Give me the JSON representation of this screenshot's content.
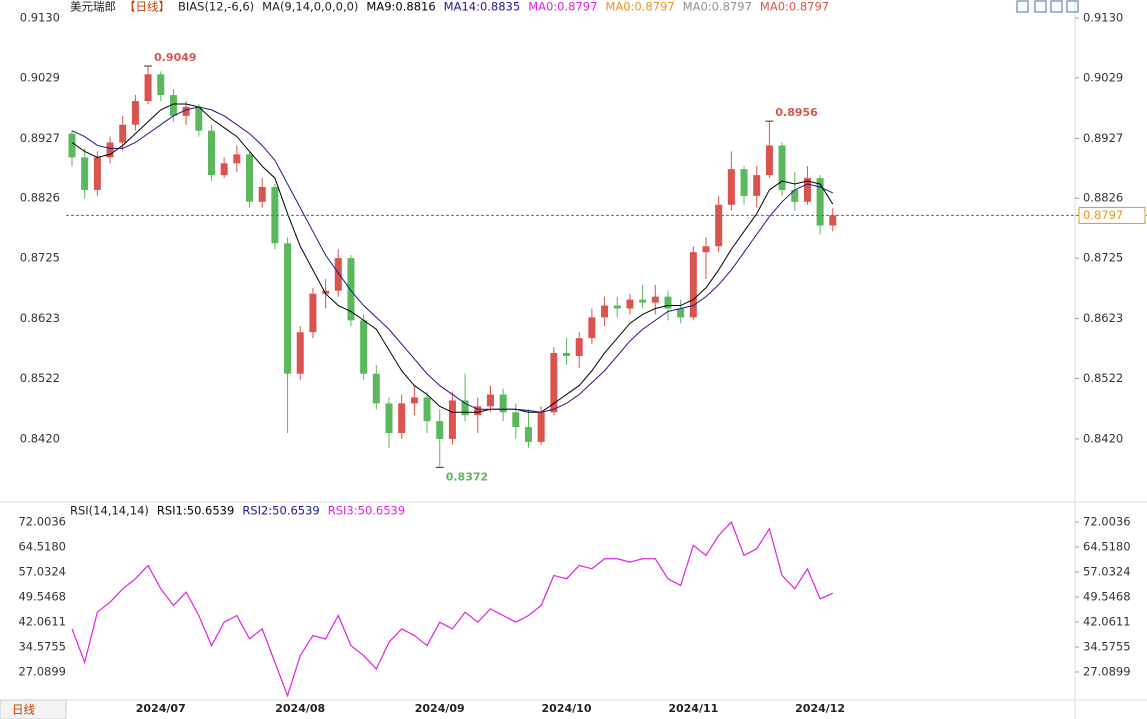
{
  "chart_data": [
    {
      "type": "candlestick",
      "title": "美元瑞郎",
      "period": "【日线】",
      "indicators": [
        "BIAS(12,-6,6)",
        "MA(9,14,0,0,0,0)"
      ],
      "up_color": "#d9534f",
      "down_color": "#5cb85c",
      "categories": [
        null,
        null,
        null,
        null,
        null,
        null,
        null,
        "2024/07",
        null,
        null,
        null,
        null,
        null,
        null,
        null,
        null,
        null,
        null,
        "2024/08",
        null,
        null,
        null,
        null,
        null,
        null,
        null,
        null,
        null,
        null,
        "2024/09",
        null,
        null,
        null,
        null,
        null,
        null,
        null,
        null,
        null,
        "2024/10",
        null,
        null,
        null,
        null,
        null,
        null,
        null,
        null,
        null,
        "2024/11",
        null,
        null,
        null,
        null,
        null,
        null,
        null,
        null,
        null,
        "2024/12",
        null
      ],
      "open": [
        0.8935,
        0.8895,
        0.884,
        0.8895,
        0.892,
        0.895,
        0.899,
        0.9035,
        0.9,
        0.8965,
        0.898,
        0.894,
        0.8865,
        0.8885,
        0.89,
        0.882,
        0.8845,
        0.875,
        0.853,
        0.86,
        0.8665,
        0.867,
        0.8725,
        0.862,
        0.853,
        0.848,
        0.843,
        0.848,
        0.849,
        0.845,
        0.842,
        0.8485,
        0.846,
        0.8475,
        0.8495,
        0.8465,
        0.844,
        0.8415,
        0.8465,
        0.8565,
        0.856,
        0.859,
        0.8625,
        0.8645,
        0.864,
        0.8655,
        0.865,
        0.866,
        0.864,
        0.8625,
        0.8735,
        0.8745,
        0.8815,
        0.8875,
        0.883,
        0.8865,
        0.8915,
        0.884,
        0.882,
        0.886,
        0.878
      ],
      "high": [
        0.894,
        0.891,
        0.8905,
        0.893,
        0.8965,
        0.9,
        0.9049,
        0.904,
        0.901,
        0.899,
        0.8985,
        0.895,
        0.8895,
        0.8915,
        0.8905,
        0.886,
        0.885,
        0.876,
        0.861,
        0.8675,
        0.869,
        0.874,
        0.873,
        0.863,
        0.8545,
        0.849,
        0.8495,
        0.851,
        0.85,
        0.847,
        0.85,
        0.853,
        0.849,
        0.851,
        0.8505,
        0.848,
        0.847,
        0.8475,
        0.8575,
        0.859,
        0.86,
        0.864,
        0.866,
        0.866,
        0.8665,
        0.868,
        0.868,
        0.867,
        0.8655,
        0.8745,
        0.876,
        0.883,
        0.8905,
        0.888,
        0.888,
        0.8956,
        0.892,
        0.887,
        0.888,
        0.8865,
        0.881
      ],
      "low": [
        0.888,
        0.8825,
        0.883,
        0.8885,
        0.8905,
        0.894,
        0.8985,
        0.899,
        0.8955,
        0.895,
        0.893,
        0.8855,
        0.886,
        0.887,
        0.881,
        0.881,
        0.874,
        0.843,
        0.852,
        0.859,
        0.864,
        0.866,
        0.861,
        0.852,
        0.847,
        0.8405,
        0.842,
        0.846,
        0.843,
        0.8372,
        0.841,
        0.845,
        0.843,
        0.8465,
        0.845,
        0.842,
        0.8405,
        0.841,
        0.846,
        0.8545,
        0.854,
        0.858,
        0.861,
        0.8625,
        0.863,
        0.864,
        0.863,
        0.862,
        0.8615,
        0.862,
        0.869,
        0.8735,
        0.8805,
        0.8815,
        0.881,
        0.886,
        0.883,
        0.8805,
        0.8815,
        0.8765,
        0.877
      ],
      "close": [
        0.8895,
        0.884,
        0.8895,
        0.892,
        0.895,
        0.899,
        0.9035,
        0.9,
        0.8965,
        0.898,
        0.894,
        0.8865,
        0.8885,
        0.89,
        0.882,
        0.8845,
        0.875,
        0.853,
        0.86,
        0.8665,
        0.867,
        0.8725,
        0.862,
        0.853,
        0.848,
        0.843,
        0.848,
        0.849,
        0.845,
        0.842,
        0.8485,
        0.846,
        0.8475,
        0.8495,
        0.8465,
        0.844,
        0.8415,
        0.8465,
        0.8565,
        0.856,
        0.859,
        0.8625,
        0.8645,
        0.864,
        0.8655,
        0.865,
        0.866,
        0.864,
        0.8625,
        0.8735,
        0.8745,
        0.8815,
        0.8875,
        0.883,
        0.8865,
        0.8915,
        0.884,
        0.882,
        0.886,
        0.878,
        0.8797
      ],
      "series": [
        {
          "name": "MA9:0.8816",
          "color": "#000000",
          "values": [
            0.892,
            0.8905,
            0.8895,
            0.89,
            0.8915,
            0.8935,
            0.8955,
            0.8975,
            0.8985,
            0.8985,
            0.898,
            0.896,
            0.8945,
            0.893,
            0.8905,
            0.888,
            0.886,
            0.88,
            0.8745,
            0.8705,
            0.8665,
            0.8645,
            0.8635,
            0.862,
            0.8605,
            0.857,
            0.8535,
            0.851,
            0.8495,
            0.8475,
            0.8465,
            0.8465,
            0.8465,
            0.847,
            0.847,
            0.847,
            0.8465,
            0.8465,
            0.848,
            0.8495,
            0.851,
            0.8535,
            0.8565,
            0.859,
            0.8615,
            0.863,
            0.864,
            0.8645,
            0.8645,
            0.8655,
            0.8675,
            0.8705,
            0.874,
            0.877,
            0.88,
            0.884,
            0.8855,
            0.885,
            0.8855,
            0.885,
            0.8816
          ]
        },
        {
          "name": "MA14:0.8835",
          "color": "#1a1a8c",
          "values": [
            0.894,
            0.893,
            0.8915,
            0.891,
            0.891,
            0.892,
            0.8935,
            0.895,
            0.8965,
            0.8975,
            0.898,
            0.8975,
            0.8965,
            0.895,
            0.8935,
            0.8915,
            0.889,
            0.885,
            0.881,
            0.877,
            0.873,
            0.87,
            0.867,
            0.8645,
            0.8625,
            0.8605,
            0.858,
            0.8555,
            0.853,
            0.851,
            0.8495,
            0.848,
            0.847,
            0.847,
            0.847,
            0.847,
            0.8468,
            0.8465,
            0.847,
            0.848,
            0.8495,
            0.8515,
            0.8535,
            0.856,
            0.8585,
            0.8605,
            0.862,
            0.8635,
            0.864,
            0.8645,
            0.866,
            0.868,
            0.8705,
            0.8735,
            0.8765,
            0.8795,
            0.882,
            0.884,
            0.885,
            0.8845,
            0.8835
          ]
        }
      ],
      "extra_legend": [
        {
          "label": "MA0:0.8797",
          "color": "#e020e0"
        },
        {
          "label": "MA0:0.8797",
          "color": "#f0901e"
        },
        {
          "label": "MA0:0.8797",
          "color": "#909090"
        },
        {
          "label": "MA0:0.8797",
          "color": "#d9534f"
        }
      ],
      "annotations": [
        {
          "x": 6,
          "value": 0.9049,
          "color": "#d9534f"
        },
        {
          "x": 55,
          "value": 0.8956,
          "color": "#d9534f"
        },
        {
          "x": 29,
          "value": 0.8372,
          "color": "#5cb85c"
        }
      ],
      "current_price": 0.8797,
      "current_color": "#f0901e",
      "ylim": [
        0.8317,
        0.913
      ],
      "yticks": [
        {
          "value": 0.913,
          "label": "0.9130"
        },
        0.9029,
        0.8927,
        0.8826,
        0.8725,
        0.8623,
        0.8522,
        {
          "value": 0.842,
          "label": "0.8420"
        }
      ]
    },
    {
      "type": "line",
      "title": "RSI(14,14,14)",
      "legend": [
        {
          "label": "RSI1:50.6539",
          "color": "#000000"
        },
        {
          "label": "RSI2:50.6539",
          "color": "#1a1a8c"
        },
        {
          "label": "RSI3:50.6539",
          "color": "#e020e0"
        }
      ],
      "series": [
        {
          "color": "#e020e0",
          "values": [
            40,
            30,
            45,
            48,
            52,
            55,
            59,
            52,
            47,
            51,
            44,
            35,
            42,
            44,
            37,
            40,
            30,
            20,
            32,
            38,
            37,
            44,
            35,
            32,
            28,
            36,
            40,
            38,
            35,
            42,
            40,
            45,
            42,
            46,
            44,
            42,
            44,
            47,
            56,
            55,
            59,
            58,
            61,
            61,
            60,
            61,
            61,
            55,
            53,
            65,
            62,
            68,
            72,
            62,
            64,
            70,
            56,
            52,
            58,
            49,
            50.6539
          ]
        }
      ],
      "ylim": [
        18.7,
        77.7
      ],
      "yticks": [
        72.0036,
        {
          "value": 64.518,
          "label": "64.5180"
        },
        57.0324,
        49.5468,
        42.0611,
        34.5755,
        27.0899
      ]
    }
  ],
  "footer": {
    "button": "日线"
  }
}
